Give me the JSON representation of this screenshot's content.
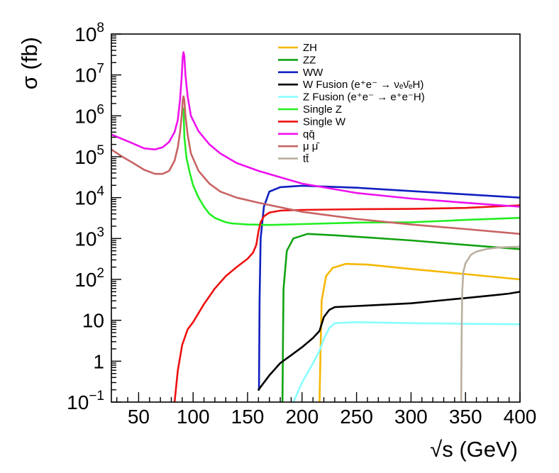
{
  "chart_data": {
    "type": "line",
    "title": "",
    "xlabel": "√s (GeV)",
    "ylabel": "σ (fb)",
    "x_scale": "linear",
    "y_scale": "log",
    "xlim": [
      25,
      400
    ],
    "ylim": [
      0.1,
      100000000
    ],
    "x_ticks": [
      50,
      100,
      150,
      200,
      250,
      300,
      350,
      400
    ],
    "x_tick_labels": [
      "50",
      "100",
      "150",
      "200",
      "250",
      "300",
      "350",
      "400"
    ],
    "y_ticks": [
      0.1,
      1,
      10,
      100,
      1000,
      10000,
      100000,
      1000000,
      10000000,
      100000000
    ],
    "y_tick_labels": [
      {
        "base": "10",
        "exp": "−1"
      },
      {
        "base": "1",
        "exp": ""
      },
      {
        "base": "10",
        "exp": ""
      },
      {
        "base": "10",
        "exp": "2"
      },
      {
        "base": "10",
        "exp": "3"
      },
      {
        "base": "10",
        "exp": "4"
      },
      {
        "base": "10",
        "exp": "5"
      },
      {
        "base": "10",
        "exp": "6"
      },
      {
        "base": "10",
        "exp": "7"
      },
      {
        "base": "10",
        "exp": "8"
      }
    ],
    "legend_position": "top-center",
    "series": [
      {
        "name": "ZH",
        "color": "#f5b800",
        "x": [
          216,
          217,
          218,
          222,
          228,
          240,
          260,
          300,
          350,
          400
        ],
        "y": [
          0.1,
          2,
          30,
          120,
          190,
          240,
          230,
          180,
          135,
          100
        ]
      },
      {
        "name": "ZZ",
        "color": "#11a211",
        "x": [
          182,
          182.5,
          183,
          186,
          192,
          205,
          230,
          300,
          350,
          400
        ],
        "y": [
          0.1,
          3,
          60,
          500,
          1000,
          1300,
          1200,
          900,
          700,
          550
        ]
      },
      {
        "name": "WW",
        "color": "#1020c0",
        "x": [
          160.5,
          161,
          162,
          165,
          170,
          180,
          200,
          250,
          300,
          350,
          400
        ],
        "y": [
          0.2,
          30,
          1000,
          6000,
          14000,
          18000,
          19500,
          17500,
          14500,
          12000,
          10000
        ]
      },
      {
        "name": "W Fusion (e⁺e⁻ → νₑν̄ₑH)",
        "color": "#000000",
        "x": [
          160,
          170,
          180,
          190,
          200,
          210,
          216,
          220,
          225,
          230,
          260,
          300,
          350,
          380,
          390,
          400
        ],
        "y": [
          0.2,
          0.45,
          0.9,
          1.4,
          2.2,
          3.7,
          5.5,
          12,
          18,
          21,
          23,
          26,
          35,
          42,
          45,
          50
        ]
      },
      {
        "name": "Z Fusion (e⁺e⁻ → e⁺e⁻H)",
        "color": "#88ffff",
        "x": [
          192,
          200,
          210,
          216,
          220,
          225,
          230,
          250,
          300,
          350,
          400
        ],
        "y": [
          0.1,
          0.3,
          0.9,
          1.8,
          3.5,
          6.5,
          8.5,
          9,
          8.5,
          8.2,
          8
        ]
      },
      {
        "name": "Single Z",
        "color": "#22ee22",
        "x": [
          91.2,
          92,
          94,
          97,
          100,
          105,
          110,
          115,
          120,
          125,
          130,
          135,
          140,
          150,
          170,
          200,
          250,
          300,
          330,
          350,
          400
        ],
        "y": [
          1500000,
          300000,
          90000,
          40000,
          20000,
          10000,
          6000,
          4000,
          3200,
          2800,
          2500,
          2350,
          2300,
          2200,
          2150,
          2250,
          2450,
          2500,
          2700,
          2850,
          3200
        ]
      },
      {
        "name": "Single W",
        "color": "#ee1111",
        "x": [
          83,
          86,
          90,
          95,
          100,
          110,
          120,
          130,
          140,
          150,
          155,
          158,
          160,
          162,
          165,
          170,
          180,
          200,
          250,
          300,
          350,
          400
        ],
        "y": [
          0.1,
          0.6,
          2.5,
          6,
          9,
          25,
          60,
          120,
          200,
          320,
          450,
          700,
          1500,
          2500,
          3500,
          4300,
          4800,
          5000,
          5200,
          5300,
          5600,
          6500
        ]
      },
      {
        "name": "qq̄",
        "color": "#ee11ee",
        "x": [
          25,
          35,
          45,
          55,
          65,
          72,
          78,
          83,
          86,
          88,
          89.5,
          90.5,
          91.2,
          92,
          93,
          95,
          98,
          105,
          115,
          125,
          140,
          160,
          200,
          250,
          300,
          350,
          400
        ],
        "y": [
          350000,
          270000,
          210000,
          160000,
          150000,
          170000,
          230000,
          400000,
          800000,
          2500000,
          9000000,
          28000000,
          36000000,
          28000000,
          10000000,
          3000000,
          1000000,
          420000,
          200000,
          120000,
          70000,
          45000,
          22000,
          13000,
          9500,
          7500,
          6000
        ]
      },
      {
        "name": "μ μ̄",
        "color": "#c86464",
        "x": [
          25,
          35,
          45,
          55,
          65,
          72,
          78,
          83,
          86,
          88,
          89.5,
          90.5,
          91.2,
          92,
          93,
          95,
          98,
          105,
          115,
          125,
          140,
          160,
          200,
          250,
          300,
          350,
          400
        ],
        "y": [
          150000,
          100000,
          70000,
          48000,
          38000,
          38000,
          45000,
          80000,
          170000,
          400000,
          1000000,
          2400000,
          3000000,
          2400000,
          1000000,
          350000,
          120000,
          45000,
          22000,
          14000,
          10000,
          7500,
          4500,
          3000,
          2200,
          1700,
          1300
        ]
      },
      {
        "name": "tt̄",
        "color": "#bbb0a0",
        "x": [
          346,
          346.5,
          347,
          348,
          350,
          355,
          360,
          370,
          380,
          390,
          400
        ],
        "y": [
          0.1,
          5,
          50,
          150,
          250,
          400,
          480,
          560,
          600,
          620,
          630
        ]
      }
    ]
  }
}
